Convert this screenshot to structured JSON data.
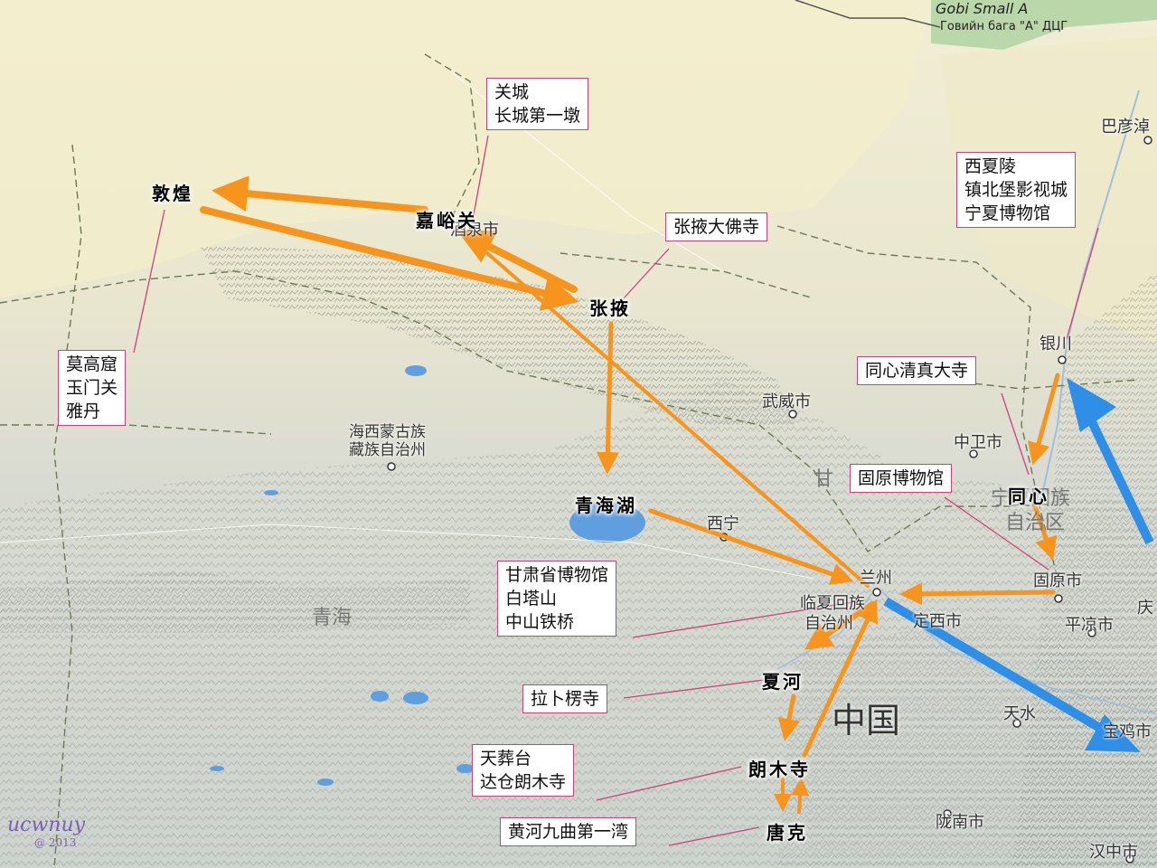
{
  "map": {
    "country": "中国",
    "places": {
      "jiuquan": "酒泉市",
      "wuwei": "武威市",
      "haixi_1": "海西蒙古族",
      "haixi_2": "藏族自治州",
      "qinghai": "青海",
      "xining": "西宁",
      "lanzhou": "兰州",
      "linxia_1": "临夏回族",
      "linxia_2": "自治州",
      "dingxi": "定西市",
      "tianshui": "天水",
      "longnan": "陇南市",
      "baoji": "宝鸡市",
      "hanzhong": "汉中市",
      "pingliang": "平凉市",
      "guyuan": "固原市",
      "zhongwei": "中卫市",
      "yinchuan": "银川",
      "bayannur": "巴彦淖",
      "ningxia_1": "宁夏回族",
      "ningxia_2": "自治区",
      "qing": "庆",
      "gan": "甘"
    },
    "gobi_line1": "Gobi Small A",
    "gobi_line2": "Говийн бага \"А\" ДЦГ"
  },
  "stops": {
    "dunhuang": "敦煌",
    "jiayuguan": "嘉峪关",
    "zhangye": "张掖",
    "qinghaihu": "青海湖",
    "xiahe": "夏河",
    "langmusi": "朗木寺",
    "tangke": "唐克",
    "tongxin": "同心"
  },
  "boxes": {
    "guancheng": [
      "关城",
      "长城第一墩"
    ],
    "mogao": [
      "莫高窟",
      "玉门关",
      "雅丹"
    ],
    "zhangye_fosi": [
      "张掖大佛寺"
    ],
    "xixia": [
      "西夏陵",
      "镇北堡影视城",
      "宁夏博物馆"
    ],
    "tongxin_mosque": [
      "同心清真大寺"
    ],
    "guyuan_museum": [
      "固原博物馆"
    ],
    "gansu_museum": [
      "甘肃省博物馆",
      "白塔山",
      "中山铁桥"
    ],
    "labrang": [
      "拉卜楞寺"
    ],
    "tianzang": [
      "天葬台",
      "达仓朗木寺"
    ],
    "huanghe": [
      "黄河九曲第一湾"
    ]
  },
  "signature": {
    "name": "ucwnuy",
    "year": "@ 2013"
  },
  "colors": {
    "route": "#f7941d",
    "flight": "#2f8ee5",
    "callout": "#d0417a",
    "lake": "#5f9fe0"
  }
}
